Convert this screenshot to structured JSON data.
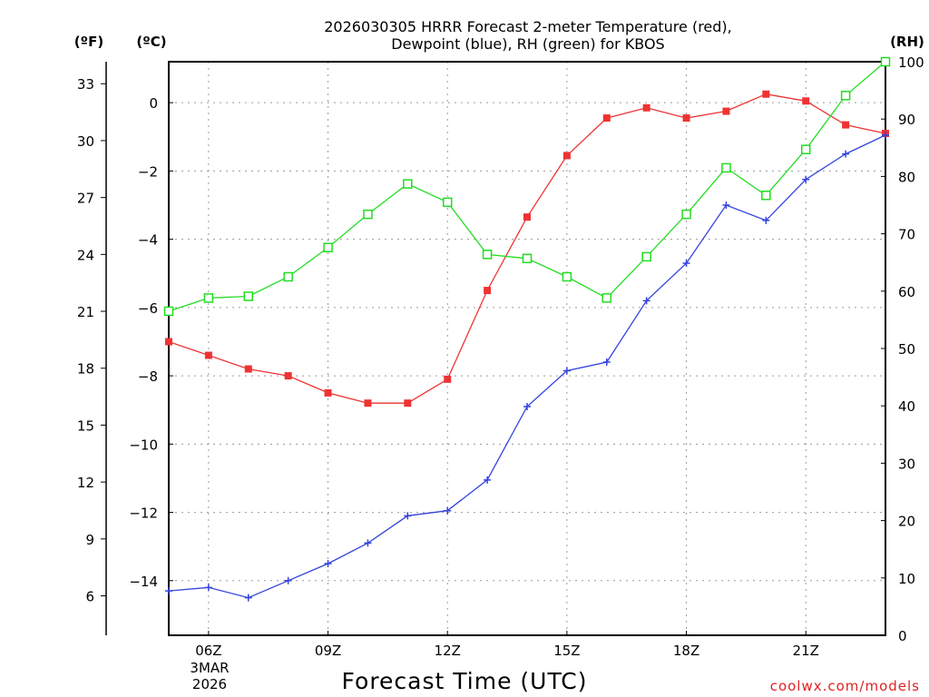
{
  "chart_data": {
    "type": "line",
    "title_line1": "2026030305 HRRR Forecast 2-meter Temperature (red),",
    "title_line2": "Dewpoint (blue), RH (green) for KBOS",
    "xlabel": "Forecast Time (UTC)",
    "credit": "coolwx.com/models",
    "units": {
      "left_f": "(ºF)",
      "left_c": "(ºC)",
      "right_rh": "(RH)"
    },
    "date_label": [
      "3MAR",
      "2026"
    ],
    "x_hours": [
      5,
      6,
      7,
      8,
      9,
      10,
      11,
      12,
      13,
      14,
      15,
      16,
      17,
      18,
      19,
      20,
      21,
      22,
      23
    ],
    "x_range": [
      5,
      23
    ],
    "x_ticks": [
      {
        "hour": 6,
        "label": "06Z"
      },
      {
        "hour": 9,
        "label": "09Z"
      },
      {
        "hour": 12,
        "label": "12Z"
      },
      {
        "hour": 15,
        "label": "15Z"
      },
      {
        "hour": 18,
        "label": "18Z"
      },
      {
        "hour": 21,
        "label": "21Z"
      }
    ],
    "c_range": [
      -15.6,
      1.2
    ],
    "c_ticks": [
      0,
      -2,
      -4,
      -6,
      -8,
      -10,
      -12,
      -14
    ],
    "f_ticks": [
      33,
      30,
      27,
      24,
      21,
      18,
      15,
      12,
      9,
      6
    ],
    "rh_range": [
      0,
      100
    ],
    "rh_ticks": [
      100,
      90,
      80,
      70,
      60,
      50,
      40,
      30,
      20,
      10,
      0
    ],
    "series": [
      {
        "name": "Temperature",
        "unit": "C",
        "color": "#ee3333",
        "marker": "filled-square",
        "values": [
          -7.0,
          -7.4,
          -7.8,
          -8.0,
          -8.5,
          -8.8,
          -8.8,
          -8.1,
          -5.5,
          -3.35,
          -1.55,
          -0.45,
          -0.15,
          -0.45,
          -0.25,
          0.25,
          0.05,
          -0.65,
          -0.9
        ]
      },
      {
        "name": "Dewpoint",
        "unit": "C",
        "color": "#3344dd",
        "marker": "plus",
        "values": [
          -14.3,
          -14.2,
          -14.5,
          -14.0,
          -13.5,
          -12.9,
          -12.1,
          -11.95,
          -11.05,
          -8.9,
          -7.85,
          -7.6,
          -5.8,
          -4.7,
          -3.0,
          -3.45,
          -2.25,
          -1.5,
          -0.95
        ]
      },
      {
        "name": "RH",
        "unit": "%",
        "color": "#22dd22",
        "marker": "open-square",
        "values": [
          56.5,
          58.8,
          59.1,
          62.5,
          67.6,
          73.4,
          78.7,
          75.5,
          66.4,
          65.7,
          62.5,
          58.8,
          66.0,
          73.4,
          81.5,
          76.7,
          84.7,
          94.1,
          100
        ]
      }
    ]
  }
}
